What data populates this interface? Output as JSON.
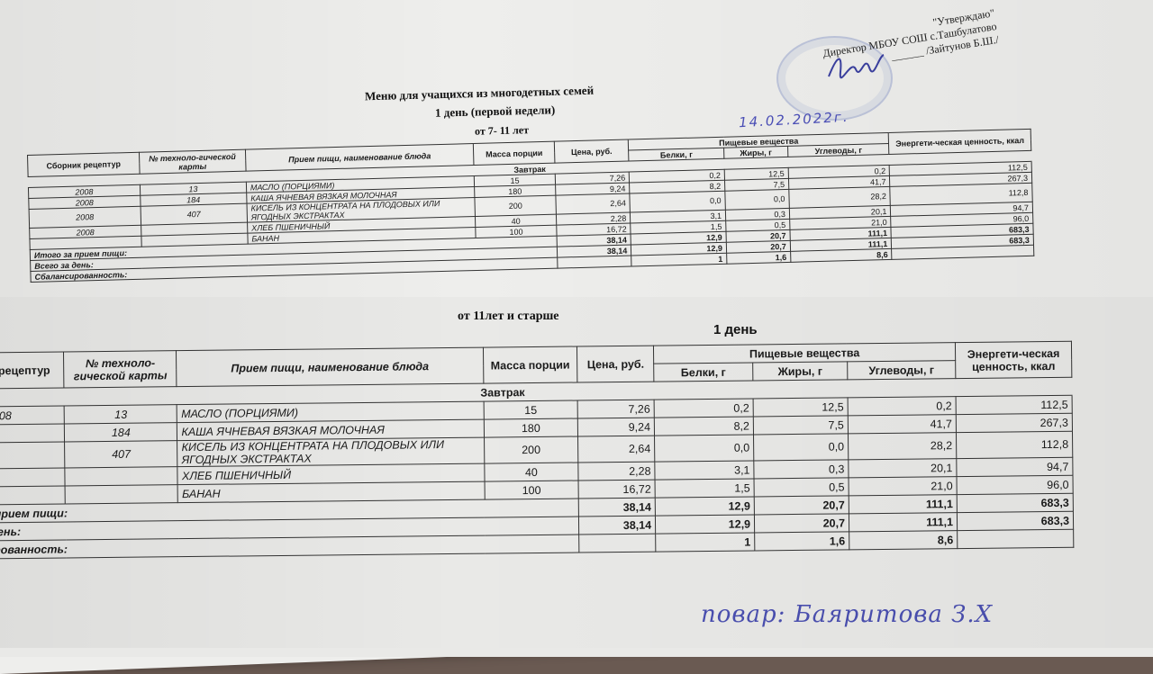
{
  "approval": {
    "line1": "\"Утверждаю\"",
    "line2": "Директор МБОУ СОШ с.Ташбулатово",
    "line3": "______ /Зайтунов Б.Ш./",
    "signature": "подпись"
  },
  "title": "Меню для учащихся из многодетных семей",
  "subtitle": "1 день (первой недели)",
  "group1": "от 7- 11 лет",
  "group2": "от 11лет и старше",
  "day_label": "1 день",
  "handwritten_date": "14.02.2022г.",
  "handwritten_cook": "повар: Баяритова З.Х",
  "headers": {
    "collection": "Сборник рецептур",
    "card": "№ техноло-гической карты",
    "dish": "Прием пищи, наименование блюда",
    "mass": "Масса порции",
    "price": "Цена, руб.",
    "nutrients": "Пищевые вещества",
    "protein": "Белки, г",
    "fat": "Жиры, г",
    "carbs": "Углеводы, г",
    "energy": "Энергети-ческая ценность, ккал"
  },
  "meal": "Завтрак",
  "rows": [
    {
      "collection": "2008",
      "card": "13",
      "dish": "МАСЛО (ПОРЦИЯМИ)",
      "mass": "15",
      "price": "7,26",
      "protein": "0,2",
      "fat": "12,5",
      "carbs": "0,2",
      "energy": "112,5"
    },
    {
      "collection": "2008",
      "card": "184",
      "dish": "КАША ЯЧНЕВАЯ ВЯЗКАЯ МОЛОЧНАЯ",
      "mass": "180",
      "price": "9,24",
      "protein": "8,2",
      "fat": "7,5",
      "carbs": "41,7",
      "energy": "267,3"
    },
    {
      "collection": "2008",
      "card": "407",
      "dish": "КИСЕЛЬ ИЗ КОНЦЕНТРАТА НА ПЛОДОВЫХ ИЛИ ЯГОДНЫХ ЭКСТРАКТАХ",
      "mass": "200",
      "price": "2,64",
      "protein": "0,0",
      "fat": "0,0",
      "carbs": "28,2",
      "energy": "112,8"
    },
    {
      "collection": "2008",
      "card": "",
      "dish": "ХЛЕБ ПШЕНИЧНЫЙ",
      "mass": "40",
      "price": "2,28",
      "protein": "3,1",
      "fat": "0,3",
      "carbs": "20,1",
      "energy": "94,7"
    },
    {
      "collection": "",
      "card": "",
      "dish": "БАНАН",
      "mass": "100",
      "price": "16,72",
      "protein": "1,5",
      "fat": "0,5",
      "carbs": "21,0",
      "energy": "96,0"
    }
  ],
  "totals": [
    {
      "label": "Итого за прием пищи:",
      "price": "38,14",
      "protein": "12,9",
      "fat": "20,7",
      "carbs": "111,1",
      "energy": "683,3"
    },
    {
      "label": "Всего за день:",
      "price": "38,14",
      "protein": "12,9",
      "fat": "20,7",
      "carbs": "111,1",
      "energy": "683,3"
    },
    {
      "label": "Сбалансированность:",
      "price": "",
      "protein": "1",
      "fat": "1,6",
      "carbs": "8,6",
      "energy": ""
    }
  ]
}
